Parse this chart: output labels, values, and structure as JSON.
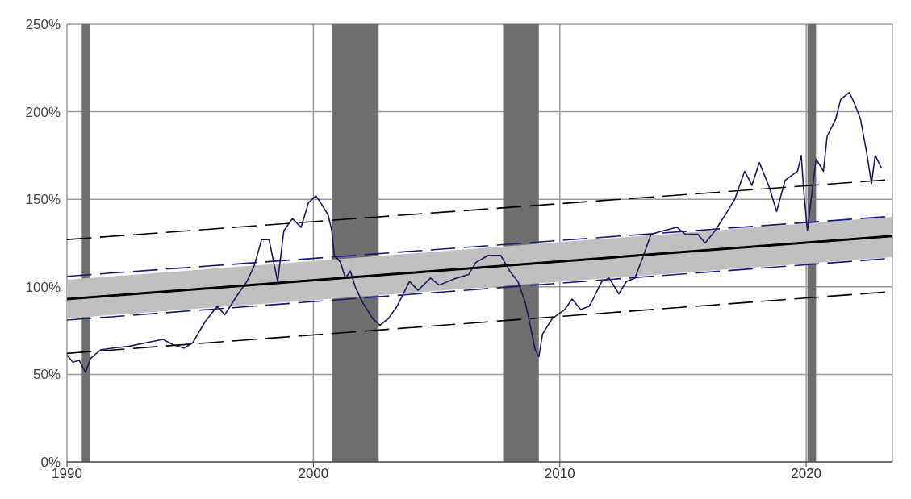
{
  "chart_data": {
    "type": "line",
    "xlim": [
      1990,
      2023.5
    ],
    "xticks": [
      1990,
      2000,
      2010,
      2020
    ],
    "ylim": [
      0,
      250
    ],
    "yticks": [
      {
        "value": 0,
        "label": "0%"
      },
      {
        "value": 50,
        "label": "50%"
      },
      {
        "value": 100,
        "label": "100%"
      },
      {
        "value": 150,
        "label": "150%"
      },
      {
        "value": 200,
        "label": "200%"
      },
      {
        "value": 250,
        "label": "250%"
      }
    ],
    "grid": true,
    "legend": false,
    "bands": [
      {
        "axis": "x",
        "from": 1990.6,
        "to": 1990.95,
        "color": "#6e6e6e"
      },
      {
        "axis": "x",
        "from": 2000.75,
        "to": 2002.65,
        "color": "#6e6e6e"
      },
      {
        "axis": "x",
        "from": 2007.7,
        "to": 2009.15,
        "color": "#6e6e6e"
      },
      {
        "axis": "x",
        "from": 2020.05,
        "to": 2020.4,
        "color": "#6e6e6e"
      }
    ],
    "series": [
      {
        "color": "#1c1c5c",
        "line_style": "solid",
        "x": [
          1990,
          1990.24,
          1990.5,
          1990.75,
          1990.95,
          1991.36,
          1991.86,
          1992.5,
          1993.2,
          1993.9,
          1994.3,
          1994.75,
          1995.1,
          1995.6,
          1996.1,
          1996.4,
          1996.95,
          1997.3,
          1997.6,
          1997.9,
          1998.2,
          1998.55,
          1998.8,
          1999.15,
          1999.5,
          1999.8,
          2000.1,
          2000.3,
          2000.6,
          2000.75,
          2000.85,
          2001.1,
          2001.3,
          2001.5,
          2001.7,
          2002.0,
          2002.4,
          2002.7,
          2003.05,
          2003.4,
          2003.9,
          2004.25,
          2004.75,
          2005.1,
          2005.8,
          2006.3,
          2006.6,
          2007.1,
          2007.6,
          2007.97,
          2008.3,
          2008.6,
          2008.8,
          2009.0,
          2009.15,
          2009.3,
          2009.7,
          2010.2,
          2010.5,
          2010.85,
          2011.2,
          2011.35,
          2011.7,
          2012.0,
          2012.4,
          2012.7,
          2013.05,
          2013.4,
          2013.7,
          2014.2,
          2014.75,
          2015.1,
          2015.6,
          2015.9,
          2016.3,
          2016.8,
          2017.1,
          2017.5,
          2017.8,
          2018.1,
          2018.5,
          2018.8,
          2019.15,
          2019.65,
          2019.8,
          2019.9,
          2020.05,
          2020.4,
          2020.7,
          2020.85,
          2021.2,
          2021.4,
          2021.75,
          2021.95,
          2022.2,
          2022.45,
          2022.65,
          2022.8,
          2023.05
        ],
        "values": [
          61,
          57,
          58,
          51,
          59,
          64,
          65,
          66,
          68,
          70,
          67,
          65,
          68,
          80,
          89,
          84,
          96,
          103,
          112,
          127,
          127,
          103,
          132,
          139,
          134,
          148,
          152,
          148,
          141,
          132,
          118,
          114,
          105,
          109,
          100,
          91,
          82,
          78,
          82,
          89,
          103,
          98,
          105,
          101,
          105,
          107,
          114,
          118,
          118,
          109,
          103,
          91,
          78,
          64,
          60,
          73,
          82,
          87,
          93,
          87,
          89,
          93,
          103,
          105,
          96,
          103,
          105,
          118,
          130,
          132,
          134,
          130,
          130,
          125,
          132,
          143,
          150,
          166,
          158,
          171,
          157,
          143,
          161,
          166,
          175,
          155,
          132,
          173,
          166,
          186,
          196,
          207,
          211,
          205,
          196,
          177,
          159,
          175,
          168
        ]
      },
      {
        "color": "#000000",
        "line_style": "solid",
        "x": [
          1990,
          2023.5
        ],
        "values": [
          93,
          129
        ],
        "lower": [
          82,
          117
        ],
        "upper": [
          104,
          140
        ]
      },
      {
        "color": "#1a1a7a",
        "line_style": "dashed",
        "x": [
          1990,
          2023.2
        ],
        "values": [
          106,
          140
        ]
      },
      {
        "color": "#1a1a7a",
        "line_style": "dashed",
        "x": [
          1990,
          2023.2
        ],
        "values": [
          81,
          116
        ]
      },
      {
        "color": "#000000",
        "line_style": "dashed",
        "x": [
          1990,
          2023.2
        ],
        "values": [
          127,
          161
        ]
      },
      {
        "color": "#000000",
        "line_style": "dashed",
        "x": [
          1990,
          2023.2
        ],
        "values": [
          62,
          97
        ]
      }
    ]
  }
}
